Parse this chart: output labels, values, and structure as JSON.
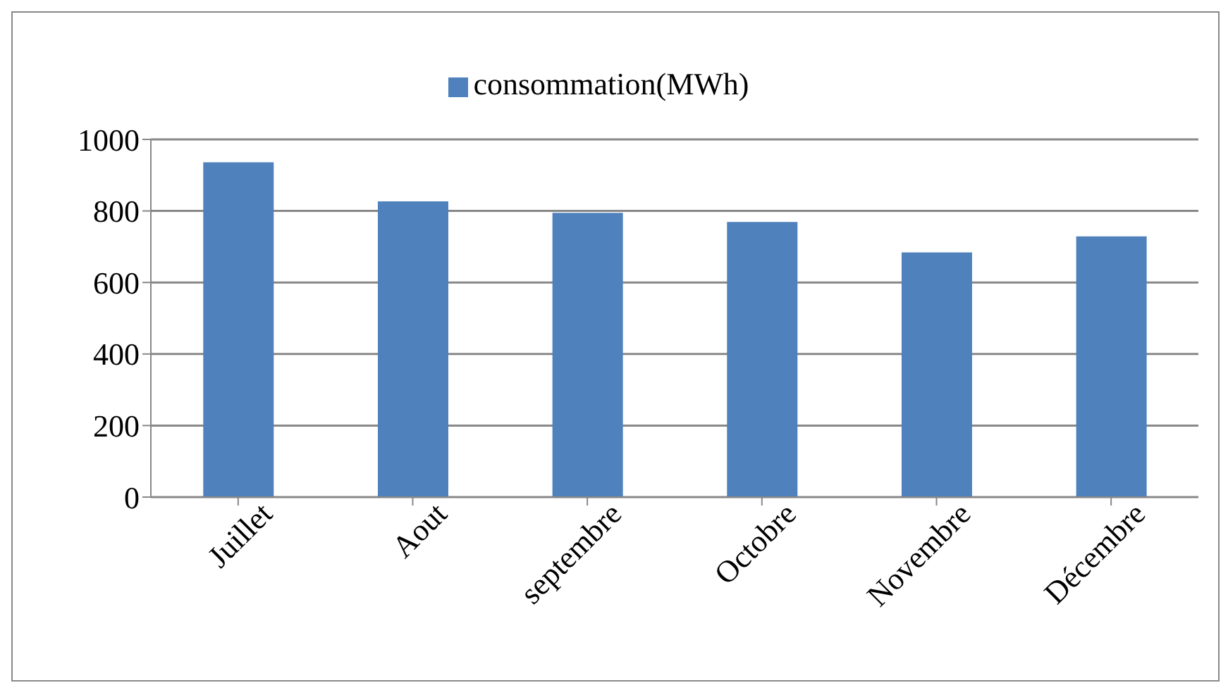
{
  "chart_data": {
    "type": "bar",
    "categories": [
      "Juillet",
      "Aout",
      "septembre",
      "Octobre",
      "Novembre",
      "Décembre"
    ],
    "series": [
      {
        "name": "consommation(MWh)",
        "color": "#4f81bd",
        "values": [
          936,
          827,
          795,
          769,
          684,
          729
        ]
      }
    ],
    "ylim": [
      0,
      1000
    ],
    "yticks": [
      0,
      200,
      400,
      600,
      800,
      1000
    ],
    "grid": "y",
    "legend": "top"
  }
}
